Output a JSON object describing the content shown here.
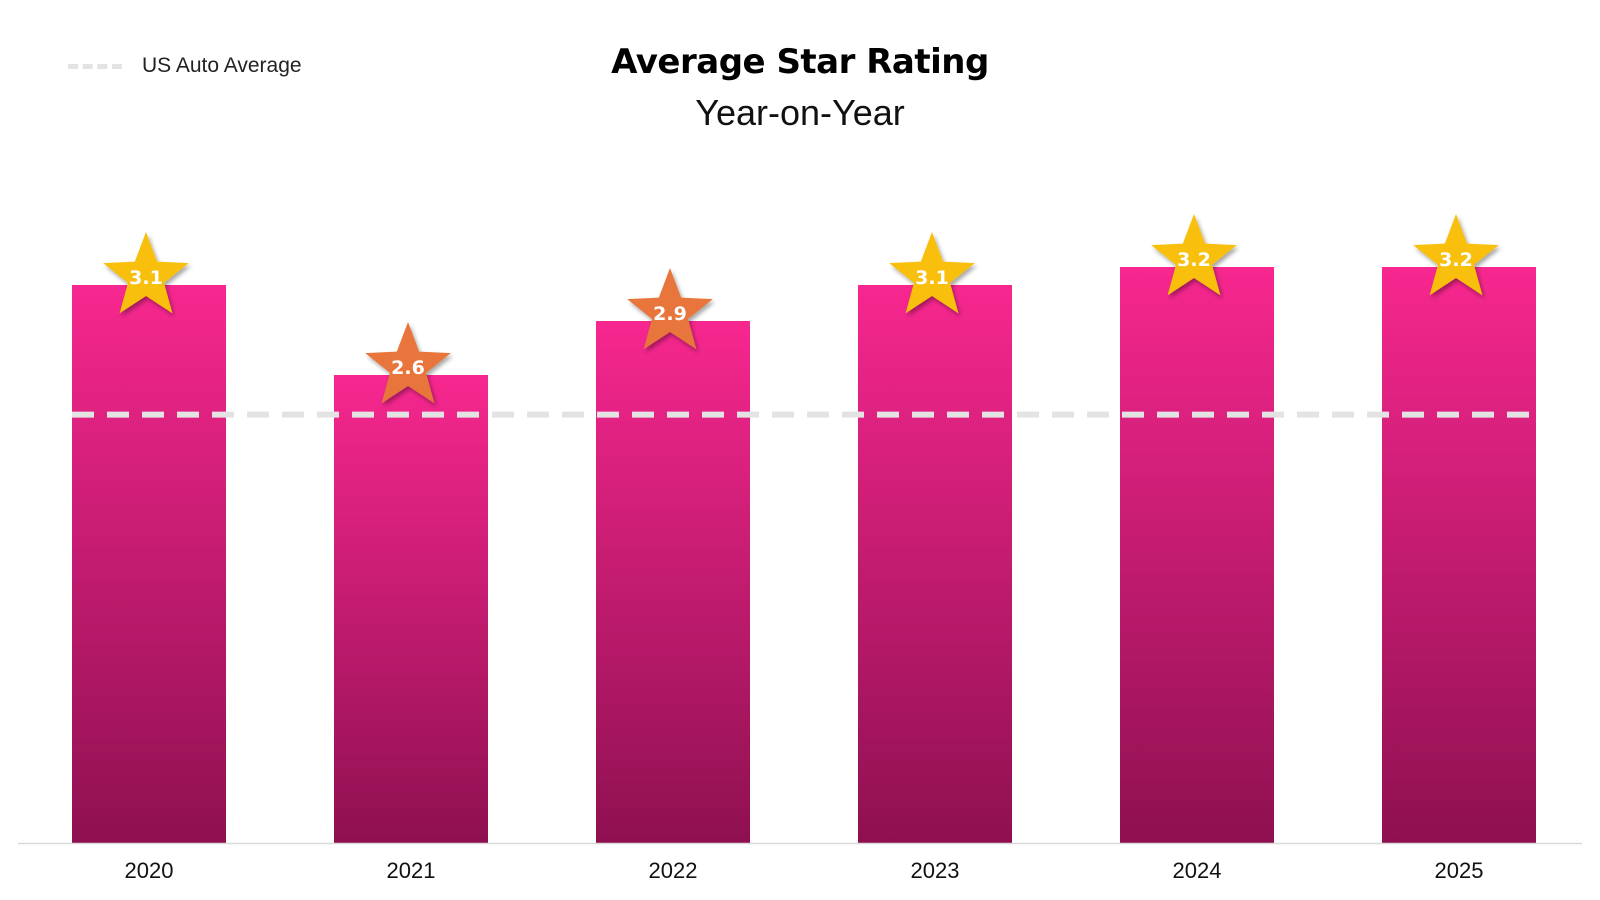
{
  "chart_data": {
    "type": "bar",
    "title": "Average Star Rating",
    "subtitle": "Year-on-Year",
    "categories": [
      "2020",
      "2021",
      "2022",
      "2023",
      "2024",
      "2025"
    ],
    "values": [
      3.1,
      2.6,
      2.9,
      3.1,
      3.2,
      3.2
    ],
    "data_labels": [
      "3.1",
      "2.6",
      "2.9",
      "3.1",
      "3.2",
      "3.2"
    ],
    "ylim": [
      0,
      4.05
    ],
    "grid": false,
    "reference_line": {
      "name": "US Auto Average",
      "value": 2.38
    },
    "legend": {
      "placement": "top-left",
      "entries": [
        "US Auto Average"
      ]
    },
    "colors": {
      "bar_top": "#f7278f",
      "bar_bottom": "#8e1050",
      "star_high": "#f8bf08",
      "star_low": "#e8743b",
      "reference_line": "#e3e3e3",
      "axis": "#d9d9d9"
    },
    "star_low_threshold": 3.0
  }
}
